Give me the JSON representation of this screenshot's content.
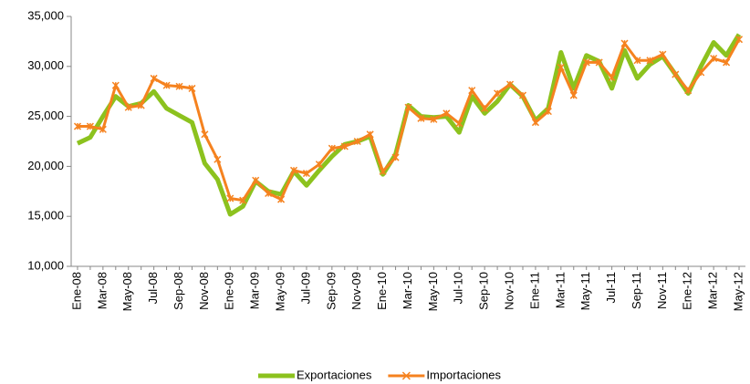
{
  "chart_data": {
    "type": "line",
    "categories": [
      "Ene-08",
      null,
      "Mar-08",
      null,
      "May-08",
      null,
      "Jul-08",
      null,
      "Sep-08",
      null,
      "Nov-08",
      null,
      "Ene-09",
      null,
      "Mar-09",
      null,
      "May-09",
      null,
      "Jul-09",
      null,
      "Sep-09",
      null,
      "Nov-09",
      null,
      "Ene-10",
      null,
      "Mar-10",
      null,
      "May-10",
      null,
      "Jul-10",
      null,
      "Sep-10",
      null,
      "Nov-10",
      null,
      "Ene-11",
      null,
      "Mar-11",
      null,
      "May-11",
      null,
      "Jul-11",
      null,
      "Sep-11",
      null,
      "Nov-11",
      null,
      "Ene-12",
      null,
      "Mar-12",
      null,
      "May-12"
    ],
    "series": [
      {
        "name": "Exportaciones",
        "color": "#8cc21e",
        "values": [
          22300,
          22900,
          25000,
          27000,
          26000,
          26300,
          27500,
          25800,
          25100,
          24400,
          20300,
          18700,
          15200,
          16000,
          18500,
          17500,
          17200,
          19500,
          18100,
          19600,
          21000,
          22200,
          22500,
          23000,
          19200,
          21200,
          26100,
          25000,
          24900,
          25000,
          23400,
          27000,
          25300,
          26500,
          28200,
          27000,
          24600,
          25800,
          31400,
          27800,
          31100,
          30500,
          27800,
          31600,
          28800,
          30200,
          31000,
          29200,
          27300,
          30000,
          32400,
          31100,
          33200
        ]
      },
      {
        "name": "Importaciones",
        "color": "#f5821f",
        "marker": "asterisk",
        "values": [
          24000,
          24000,
          23700,
          28100,
          25900,
          26100,
          28800,
          28100,
          28000,
          27800,
          23200,
          20700,
          16800,
          16600,
          18600,
          17300,
          16700,
          19600,
          19300,
          20200,
          21800,
          22000,
          22500,
          23200,
          19500,
          20900,
          25900,
          24800,
          24700,
          25300,
          24300,
          27600,
          25800,
          27300,
          28200,
          27100,
          24400,
          25500,
          29900,
          27100,
          30400,
          30400,
          28900,
          32300,
          30600,
          30600,
          31200,
          29200,
          27600,
          29400,
          30800,
          30400,
          32700
        ]
      }
    ],
    "ylim": [
      10000,
      35000
    ],
    "yticks": [
      {
        "value": 10000,
        "label": "10,000"
      },
      {
        "value": 15000,
        "label": "15,000"
      },
      {
        "value": 20000,
        "label": "20,000"
      },
      {
        "value": 25000,
        "label": "25,000"
      },
      {
        "value": 30000,
        "label": "30,000"
      },
      {
        "value": 35000,
        "label": "35,000"
      }
    ],
    "grid": false,
    "legend": "bottom"
  }
}
